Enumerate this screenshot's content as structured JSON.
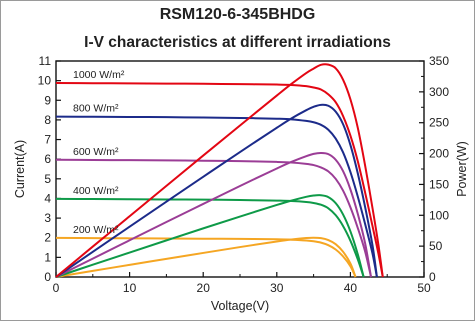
{
  "chart_data": {
    "type": "line",
    "title": "RSM120-6-345BHDG",
    "subtitle": "I-V characteristics at different irradiations",
    "xlabel": "Voltage(V)",
    "ylabel": "Current(A)",
    "y2label": "Power(W)",
    "xlim": [
      0,
      50
    ],
    "ylim": [
      0,
      11
    ],
    "y2lim": [
      0,
      350
    ],
    "xticks": [
      "0",
      "10",
      "20",
      "30",
      "40",
      "50"
    ],
    "yticks": [
      "0",
      "1",
      "2",
      "3",
      "4",
      "5",
      "6",
      "7",
      "8",
      "9",
      "10",
      "11"
    ],
    "y2ticks": [
      "0",
      "50",
      "100",
      "150",
      "200",
      "250",
      "300",
      "350"
    ],
    "grid": false,
    "series": [
      {
        "name": "1000 W/m²",
        "color": "#e30613",
        "iv": [
          [
            0,
            9.88
          ],
          [
            5,
            9.87
          ],
          [
            10,
            9.86
          ],
          [
            15,
            9.85
          ],
          [
            20,
            9.84
          ],
          [
            25,
            9.82
          ],
          [
            30,
            9.8
          ],
          [
            32,
            9.78
          ],
          [
            34,
            9.72
          ],
          [
            35,
            9.65
          ],
          [
            36,
            9.55
          ],
          [
            37,
            9.3
          ],
          [
            38,
            8.9
          ],
          [
            39,
            8.2
          ],
          [
            40,
            7.2
          ],
          [
            41,
            5.9
          ],
          [
            42,
            4.3
          ],
          [
            43,
            2.6
          ],
          [
            43.8,
            1.2
          ],
          [
            44.4,
            0
          ]
        ],
        "pv": [
          [
            0,
            0
          ],
          [
            5,
            49.3
          ],
          [
            10,
            98.5
          ],
          [
            15,
            147.7
          ],
          [
            20,
            196.8
          ],
          [
            25,
            245.5
          ],
          [
            30,
            294
          ],
          [
            32,
            313
          ],
          [
            34,
            330.5
          ],
          [
            35,
            337.7
          ],
          [
            36,
            343.8
          ],
          [
            37,
            344.1
          ],
          [
            38,
            338.2
          ],
          [
            39,
            319.8
          ],
          [
            40,
            288
          ],
          [
            41,
            241.9
          ],
          [
            42,
            180.6
          ],
          [
            43,
            111.8
          ],
          [
            43.8,
            52.6
          ],
          [
            44.4,
            0
          ]
        ]
      },
      {
        "name": "800 W/m²",
        "color": "#1c2b8a",
        "iv": [
          [
            0,
            8.17
          ],
          [
            5,
            8.16
          ],
          [
            10,
            8.15
          ],
          [
            15,
            8.14
          ],
          [
            20,
            8.12
          ],
          [
            25,
            8.1
          ],
          [
            30,
            8.06
          ],
          [
            32,
            8.03
          ],
          [
            34,
            7.95
          ],
          [
            35,
            7.88
          ],
          [
            36,
            7.75
          ],
          [
            37,
            7.5
          ],
          [
            38,
            7.05
          ],
          [
            39,
            6.35
          ],
          [
            40,
            5.35
          ],
          [
            41,
            4.1
          ],
          [
            42,
            2.7
          ],
          [
            43,
            1.2
          ],
          [
            43.6,
            0
          ]
        ],
        "pv": [
          [
            0,
            0
          ],
          [
            5,
            40.8
          ],
          [
            10,
            81.5
          ],
          [
            15,
            122.1
          ],
          [
            20,
            162.4
          ],
          [
            25,
            202.5
          ],
          [
            30,
            241.8
          ],
          [
            32,
            257
          ],
          [
            34,
            270.3
          ],
          [
            35,
            275.8
          ],
          [
            36,
            279
          ],
          [
            37,
            277.5
          ],
          [
            38,
            267.9
          ],
          [
            39,
            247.7
          ],
          [
            40,
            214
          ],
          [
            41,
            168.1
          ],
          [
            42,
            113.4
          ],
          [
            43,
            51.6
          ],
          [
            43.6,
            0
          ]
        ]
      },
      {
        "name": "600 W/m²",
        "color": "#9b3d96",
        "iv": [
          [
            0,
            5.97
          ],
          [
            5,
            5.96
          ],
          [
            10,
            5.95
          ],
          [
            15,
            5.94
          ],
          [
            20,
            5.92
          ],
          [
            25,
            5.9
          ],
          [
            30,
            5.86
          ],
          [
            32,
            5.83
          ],
          [
            34,
            5.76
          ],
          [
            35,
            5.7
          ],
          [
            36,
            5.58
          ],
          [
            37,
            5.38
          ],
          [
            38,
            5.0
          ],
          [
            39,
            4.4
          ],
          [
            40,
            3.55
          ],
          [
            41,
            2.5
          ],
          [
            42,
            1.3
          ],
          [
            42.8,
            0
          ]
        ],
        "pv": [
          [
            0,
            0
          ],
          [
            5,
            29.8
          ],
          [
            10,
            59.5
          ],
          [
            15,
            89.1
          ],
          [
            20,
            118.4
          ],
          [
            25,
            147.5
          ],
          [
            30,
            175.8
          ],
          [
            32,
            186.6
          ],
          [
            34,
            195.8
          ],
          [
            35,
            199.5
          ],
          [
            36,
            200.9
          ],
          [
            37,
            199.1
          ],
          [
            38,
            190
          ],
          [
            39,
            171.6
          ],
          [
            40,
            142
          ],
          [
            41,
            102.5
          ],
          [
            42,
            54.6
          ],
          [
            42.8,
            0
          ]
        ]
      },
      {
        "name": "400 W/m²",
        "color": "#0e9a48",
        "iv": [
          [
            0,
            3.98
          ],
          [
            5,
            3.97
          ],
          [
            10,
            3.96
          ],
          [
            15,
            3.95
          ],
          [
            20,
            3.94
          ],
          [
            25,
            3.92
          ],
          [
            30,
            3.89
          ],
          [
            32,
            3.87
          ],
          [
            34,
            3.82
          ],
          [
            35,
            3.77
          ],
          [
            36,
            3.68
          ],
          [
            37,
            3.5
          ],
          [
            38,
            3.15
          ],
          [
            39,
            2.6
          ],
          [
            40,
            1.85
          ],
          [
            41,
            0.9
          ],
          [
            41.8,
            0
          ]
        ],
        "pv": [
          [
            0,
            0
          ],
          [
            5,
            19.9
          ],
          [
            10,
            39.6
          ],
          [
            15,
            59.3
          ],
          [
            20,
            78.8
          ],
          [
            25,
            98
          ],
          [
            30,
            116.7
          ],
          [
            32,
            123.8
          ],
          [
            34,
            129.9
          ],
          [
            35,
            132
          ],
          [
            36,
            132.5
          ],
          [
            37,
            129.5
          ],
          [
            38,
            119.7
          ],
          [
            39,
            101.4
          ],
          [
            40,
            74
          ],
          [
            41,
            36.9
          ],
          [
            41.8,
            0
          ]
        ]
      },
      {
        "name": "200 W/m²",
        "color": "#f5a623",
        "iv": [
          [
            0,
            1.99
          ],
          [
            5,
            1.98
          ],
          [
            10,
            1.97
          ],
          [
            15,
            1.96
          ],
          [
            20,
            1.95
          ],
          [
            25,
            1.94
          ],
          [
            30,
            1.92
          ],
          [
            32,
            1.9
          ],
          [
            34,
            1.86
          ],
          [
            35,
            1.82
          ],
          [
            36,
            1.75
          ],
          [
            37,
            1.62
          ],
          [
            38,
            1.4
          ],
          [
            39,
            1.05
          ],
          [
            40,
            0.55
          ],
          [
            40.7,
            0
          ]
        ],
        "pv": [
          [
            0,
            0
          ],
          [
            5,
            9.9
          ],
          [
            10,
            19.7
          ],
          [
            15,
            29.4
          ],
          [
            20,
            39
          ],
          [
            25,
            48.5
          ],
          [
            30,
            57.6
          ],
          [
            32,
            60.8
          ],
          [
            34,
            63.2
          ],
          [
            35,
            63.7
          ],
          [
            36,
            63
          ],
          [
            37,
            59.9
          ],
          [
            38,
            53.2
          ],
          [
            39,
            41
          ],
          [
            40,
            22
          ],
          [
            40.7,
            0
          ]
        ]
      }
    ]
  }
}
